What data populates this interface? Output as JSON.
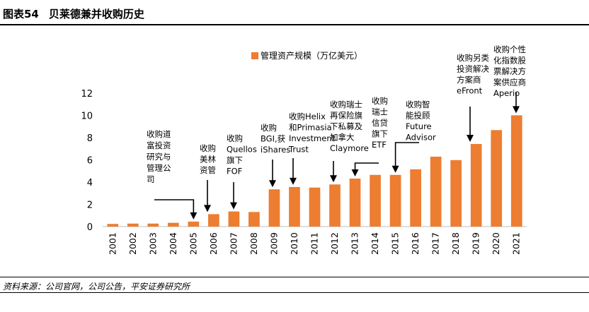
{
  "figure": {
    "number": "图表54",
    "title": "贝莱德兼并收购历史",
    "source": "资料来源：公司官网，公司公告，平安证券研究所"
  },
  "chart_data": {
    "type": "bar",
    "title": "",
    "xlabel": "",
    "ylabel": "",
    "legend": {
      "label": "管理资产规模（万亿美元）",
      "position": "top"
    },
    "categories": [
      "2001",
      "2002",
      "2003",
      "2004",
      "2005",
      "2006",
      "2007",
      "2008",
      "2009",
      "2010",
      "2011",
      "2012",
      "2013",
      "2014",
      "2015",
      "2016",
      "2017",
      "2018",
      "2019",
      "2020",
      "2021"
    ],
    "series": [
      {
        "name": "管理资产规模（万亿美元）",
        "values": [
          0.24,
          0.27,
          0.27,
          0.34,
          0.45,
          1.12,
          1.36,
          1.31,
          3.35,
          3.56,
          3.51,
          3.79,
          4.32,
          4.65,
          4.65,
          5.15,
          6.29,
          5.98,
          7.43,
          8.68,
          10.01
        ]
      }
    ],
    "ylim": [
      0,
      12
    ],
    "yticks": [
      0,
      2,
      4,
      6,
      8,
      10,
      12
    ],
    "grid": false,
    "bar_color": "#ED7D31",
    "annotations": [
      {
        "lines": [
          "收购道",
          "富投资",
          "研究与",
          "管理公",
          "司"
        ],
        "target": "2005"
      },
      {
        "lines": [
          "收购",
          "美林",
          "资管"
        ],
        "target": "2006"
      },
      {
        "lines": [
          "收购",
          "Quellos",
          "旗下",
          "FOF"
        ],
        "target": "2007"
      },
      {
        "lines": [
          "收购",
          "BGI,获",
          "iShares"
        ],
        "target": "2009"
      },
      {
        "lines": [
          "收购Helix",
          "和Primasia",
          "Investment",
          "Trust"
        ],
        "target": "2010"
      },
      {
        "lines": [
          "收购瑞士",
          "再保险旗",
          "下私募及",
          "加拿大",
          "Claymore"
        ],
        "target": "2012"
      },
      {
        "lines": [
          "收购",
          "瑞士",
          "信贷",
          "旗下",
          "ETF"
        ],
        "target": "2013"
      },
      {
        "lines": [
          "收购智",
          "能投顾",
          "Future",
          "Advisor"
        ],
        "target": "2015"
      },
      {
        "lines": [
          "收购另类",
          "投资解决",
          "方案商",
          "eFront"
        ],
        "target": "2019"
      },
      {
        "lines": [
          "收购个性",
          "化指数股",
          "票解决方",
          "案供应商",
          "Aperio"
        ],
        "target": "2021"
      }
    ]
  }
}
